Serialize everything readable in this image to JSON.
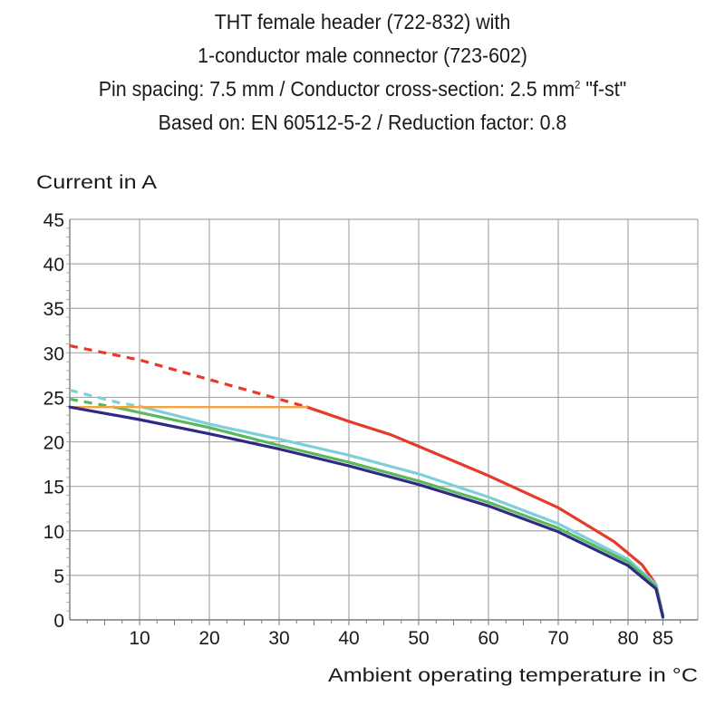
{
  "title": {
    "line1": "THT female header (722-832) with",
    "line2": "1-conductor male connector  (723-602)",
    "line3_prefix": "Pin spacing: 7.5 mm / Conductor cross-section: 2.5 mm",
    "line3_sup": "2",
    "line3_suffix": " \"f-st\"",
    "line4": "Based on: EN 60512-5-2 / Reduction factor: 0.8"
  },
  "chart_data": {
    "type": "line",
    "ylabel": "Current in A",
    "xlabel": "Ambient operating temperature in °C",
    "xlim": [
      0,
      90
    ],
    "ylim": [
      0,
      45
    ],
    "x_ticks": [
      10,
      20,
      30,
      40,
      50,
      60,
      70,
      80,
      85
    ],
    "y_ticks": [
      0,
      5,
      10,
      15,
      20,
      25,
      30,
      35,
      40,
      45
    ],
    "grid": true,
    "series": [
      {
        "color": "#e63a2a",
        "dashed_segment": [
          [
            0,
            30.8
          ],
          [
            10,
            29.2
          ],
          [
            20,
            27.0
          ],
          [
            30,
            24.8
          ],
          [
            34,
            23.9
          ]
        ],
        "values": [
          [
            34,
            23.9
          ],
          [
            40,
            22.3
          ],
          [
            46,
            20.8
          ],
          [
            50,
            19.5
          ],
          [
            60,
            16.2
          ],
          [
            70,
            12.6
          ],
          [
            78,
            8.8
          ],
          [
            82,
            6.2
          ],
          [
            84,
            4.0
          ],
          [
            85,
            0.5
          ]
        ]
      },
      {
        "color": "#7ecfd8",
        "dashed_segment": [
          [
            0,
            25.8
          ],
          [
            3,
            25.2
          ],
          [
            7,
            24.4
          ],
          [
            10,
            24.0
          ]
        ],
        "values": [
          [
            10,
            24.0
          ],
          [
            20,
            22.0
          ],
          [
            30,
            20.3
          ],
          [
            40,
            18.5
          ],
          [
            50,
            16.4
          ],
          [
            60,
            13.8
          ],
          [
            70,
            10.8
          ],
          [
            80,
            6.8
          ],
          [
            84,
            4.0
          ],
          [
            85,
            0.5
          ]
        ]
      },
      {
        "color": "#5cb85c",
        "dashed_segment": [
          [
            0,
            24.8
          ],
          [
            7,
            23.8
          ]
        ],
        "values": [
          [
            7,
            23.8
          ],
          [
            20,
            21.6
          ],
          [
            30,
            19.6
          ],
          [
            40,
            17.7
          ],
          [
            50,
            15.6
          ],
          [
            60,
            13.2
          ],
          [
            70,
            10.3
          ],
          [
            80,
            6.5
          ],
          [
            84,
            3.8
          ],
          [
            85,
            0.5
          ]
        ]
      },
      {
        "color": "#f5a33a",
        "values": [
          [
            0,
            23.9
          ],
          [
            34,
            23.9
          ]
        ]
      },
      {
        "color": "#2e2a86",
        "values": [
          [
            0,
            23.9
          ],
          [
            10,
            22.5
          ],
          [
            20,
            20.9
          ],
          [
            30,
            19.2
          ],
          [
            40,
            17.3
          ],
          [
            50,
            15.2
          ],
          [
            60,
            12.8
          ],
          [
            70,
            9.9
          ],
          [
            80,
            6.1
          ],
          [
            84,
            3.5
          ],
          [
            85,
            0.3
          ]
        ]
      }
    ]
  }
}
